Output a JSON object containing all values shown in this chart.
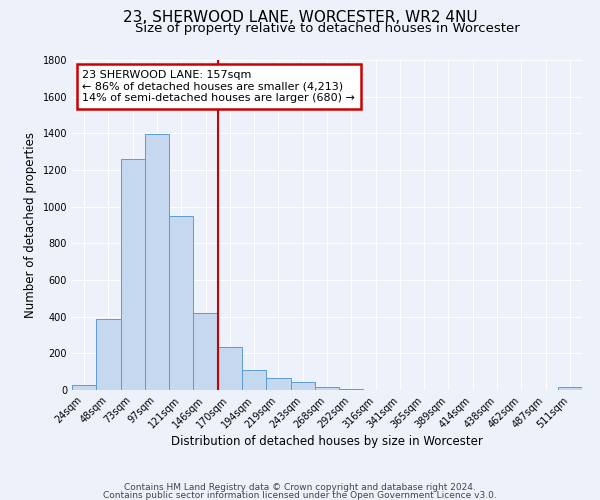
{
  "title": "23, SHERWOOD LANE, WORCESTER, WR2 4NU",
  "subtitle": "Size of property relative to detached houses in Worcester",
  "xlabel": "Distribution of detached houses by size in Worcester",
  "ylabel": "Number of detached properties",
  "footer_line1": "Contains HM Land Registry data © Crown copyright and database right 2024.",
  "footer_line2": "Contains public sector information licensed under the Open Government Licence v3.0.",
  "bar_labels": [
    "24sqm",
    "48sqm",
    "73sqm",
    "97sqm",
    "121sqm",
    "146sqm",
    "170sqm",
    "194sqm",
    "219sqm",
    "243sqm",
    "268sqm",
    "292sqm",
    "316sqm",
    "341sqm",
    "365sqm",
    "389sqm",
    "414sqm",
    "438sqm",
    "462sqm",
    "487sqm",
    "511sqm"
  ],
  "bar_values": [
    25,
    390,
    1260,
    1395,
    950,
    420,
    235,
    110,
    65,
    45,
    15,
    5,
    0,
    0,
    0,
    0,
    0,
    0,
    0,
    0,
    15
  ],
  "bar_color": "#c5d8f0",
  "bar_edge_color": "#5b9bd5",
  "vline_x": 5.5,
  "vline_color": "#cc0000",
  "annotation_line1": "23 SHERWOOD LANE: 157sqm",
  "annotation_line2": "← 86% of detached houses are smaller (4,213)",
  "annotation_line3": "14% of semi-detached houses are larger (680) →",
  "annotation_box_color": "#cc0000",
  "ylim": [
    0,
    1800
  ],
  "yticks": [
    0,
    200,
    400,
    600,
    800,
    1000,
    1200,
    1400,
    1600,
    1800
  ],
  "bg_color": "#edf2fa",
  "plot_bg_color": "#edf2fa",
  "grid_color": "#ffffff",
  "title_fontsize": 11,
  "subtitle_fontsize": 9.5,
  "axis_label_fontsize": 8.5,
  "tick_fontsize": 7,
  "footer_fontsize": 6.5,
  "annotation_fontsize": 8
}
